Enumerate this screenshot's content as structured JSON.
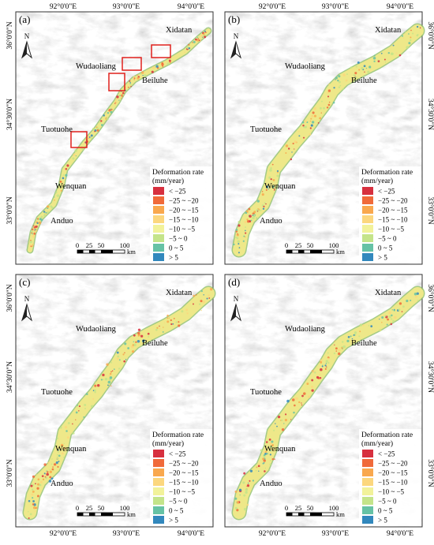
{
  "panels": [
    {
      "label": "(a)"
    },
    {
      "label": "(b)"
    },
    {
      "label": "(c)"
    },
    {
      "label": "(d)"
    }
  ],
  "places": [
    "Xidatan",
    "Wudaoliang",
    "Beiluhe",
    "Tuotuohe",
    "Wenquan",
    "Anduo"
  ],
  "lon_labels": [
    "92°0'0\"E",
    "93°0'0\"E",
    "94°0'0\"E"
  ],
  "lat_labels": [
    "36°0'0\"N",
    "34°30'0\"N",
    "33°0'0\"N"
  ],
  "north": "N",
  "legend": {
    "title": "Deformation rate",
    "unit": "(mm/year)",
    "items": [
      {
        "label": "< −25",
        "color": "#d7303f"
      },
      {
        "label": "−25 ~ −20",
        "color": "#f06a3a"
      },
      {
        "label": "−20 ~ −15",
        "color": "#f9a84e"
      },
      {
        "label": "−15 ~ −10",
        "color": "#fcd77e"
      },
      {
        "label": "−10 ~ −5",
        "color": "#f2f29a"
      },
      {
        "label": "−5 ~ 0",
        "color": "#c4e48a"
      },
      {
        "label": "0 ~ 5",
        "color": "#66c2a5"
      },
      {
        "label": "> 5",
        "color": "#3288bd"
      }
    ]
  },
  "scale_bar": {
    "labels": [
      "0",
      "25",
      "50",
      "100"
    ],
    "unit": "km"
  }
}
